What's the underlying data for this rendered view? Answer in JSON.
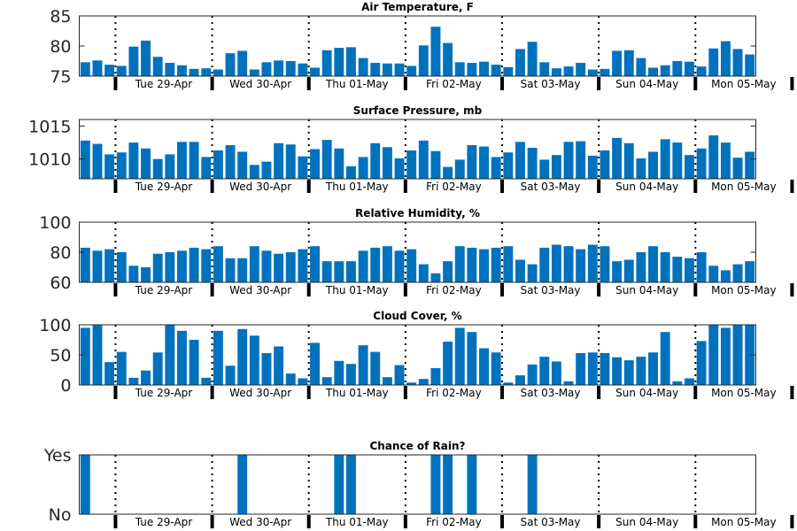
{
  "chart_data": [
    {
      "type": "bar",
      "title": "Air Temperature, F",
      "ylim": [
        75,
        85
      ],
      "yticks": [
        75,
        80,
        85
      ],
      "ytick_labels": [
        "75",
        "80",
        "85"
      ],
      "bar_color": "#0072bd",
      "values": [
        77.3,
        77.6,
        76.9,
        76.7,
        79.9,
        80.9,
        78.2,
        77.2,
        76.8,
        76.2,
        76.3,
        76.1,
        78.8,
        79.2,
        76.1,
        77.3,
        77.6,
        77.5,
        77.1,
        76.4,
        79.3,
        79.7,
        79.8,
        78.0,
        77.2,
        77.1,
        77.1,
        76.7,
        80.1,
        83.2,
        80.5,
        77.3,
        77.2,
        77.4,
        76.9,
        76.5,
        79.5,
        80.7,
        77.3,
        76.3,
        76.6,
        77.2,
        76.1,
        76.2,
        79.2,
        79.3,
        78.0,
        76.4,
        76.8,
        77.5,
        77.4,
        76.6,
        79.6,
        80.8,
        79.5,
        78.6
      ]
    },
    {
      "type": "bar",
      "title": "Surface Pressure, mb",
      "ylim": [
        1007,
        1016
      ],
      "yticks": [
        1010,
        1015
      ],
      "ytick_labels": [
        "1010",
        "1015"
      ],
      "bar_color": "#0072bd",
      "values": [
        1012.8,
        1012.3,
        1010.7,
        1011.0,
        1012.5,
        1011.6,
        1010.0,
        1010.7,
        1012.6,
        1012.6,
        1010.3,
        1011.3,
        1012.1,
        1011.1,
        1009.1,
        1009.6,
        1012.4,
        1012.2,
        1010.4,
        1011.5,
        1012.9,
        1011.6,
        1008.9,
        1010.3,
        1012.4,
        1011.8,
        1010.1,
        1011.3,
        1012.8,
        1011.2,
        1008.8,
        1009.9,
        1012.1,
        1011.9,
        1010.3,
        1011.0,
        1012.6,
        1011.7,
        1009.9,
        1010.6,
        1012.6,
        1012.7,
        1010.5,
        1011.3,
        1013.2,
        1012.4,
        1010.1,
        1011.1,
        1013.0,
        1012.5,
        1010.6,
        1011.6,
        1013.6,
        1012.5,
        1010.2,
        1011.1
      ]
    },
    {
      "type": "bar",
      "title": "Relative Humidity, %",
      "ylim": [
        60,
        100
      ],
      "yticks": [
        60,
        80,
        100
      ],
      "ytick_labels": [
        "60",
        "80",
        "100"
      ],
      "bar_color": "#0072bd",
      "values": [
        83,
        81,
        82,
        80,
        71,
        70,
        79,
        80,
        81,
        83,
        82,
        84,
        76,
        76,
        84,
        81,
        79,
        80,
        82,
        84,
        74,
        74,
        74,
        81,
        83,
        84,
        81,
        82,
        72,
        66,
        74,
        84,
        83,
        82,
        83,
        84,
        75,
        72,
        83,
        85,
        84,
        82,
        85,
        84,
        74,
        75,
        80,
        84,
        80,
        77,
        76,
        80,
        71,
        68,
        72,
        74
      ]
    },
    {
      "type": "bar",
      "title": "Cloud Cover, %",
      "ylim": [
        0,
        100
      ],
      "yticks": [
        0,
        50,
        100
      ],
      "ytick_labels": [
        "0",
        "50",
        "100"
      ],
      "bar_color": "#0072bd",
      "values": [
        95,
        100,
        38,
        55,
        12,
        24,
        54,
        100,
        90,
        75,
        12,
        90,
        32,
        93,
        82,
        53,
        64,
        19,
        11,
        70,
        13,
        40,
        35,
        66,
        55,
        13,
        33,
        4,
        10,
        28,
        72,
        95,
        88,
        61,
        54,
        4,
        16,
        34,
        47,
        39,
        6,
        53,
        54,
        53,
        46,
        41,
        47,
        54,
        88,
        6,
        11,
        73,
        100,
        95,
        100,
        100
      ]
    },
    {
      "type": "bar",
      "title": "Chance of Rain?",
      "ylim": [
        0,
        1
      ],
      "yticks": [
        0,
        1
      ],
      "ytick_labels": [
        "No",
        "Yes"
      ],
      "bar_color": "#0072bd",
      "values": [
        1,
        0,
        0,
        0,
        0,
        0,
        0,
        0,
        0,
        0,
        0,
        0,
        0,
        1,
        0,
        0,
        0,
        0,
        0,
        0,
        0,
        1,
        1,
        0,
        0,
        0,
        0,
        0,
        0,
        1,
        1,
        0,
        1,
        0,
        0,
        0,
        0,
        1,
        0,
        0,
        0,
        0,
        0,
        0,
        0,
        0,
        0,
        0,
        0,
        0,
        0,
        0,
        0,
        0,
        0,
        0
      ]
    }
  ],
  "x_axis": {
    "days": [
      "Tue 29-Apr",
      "Wed 30-Apr",
      "Thu 01-May",
      "Fri 02-May",
      "Sat 03-May",
      "Sun 04-May",
      "Mon 05-May"
    ],
    "bars_per_day": 8,
    "offset_bars": 3
  }
}
